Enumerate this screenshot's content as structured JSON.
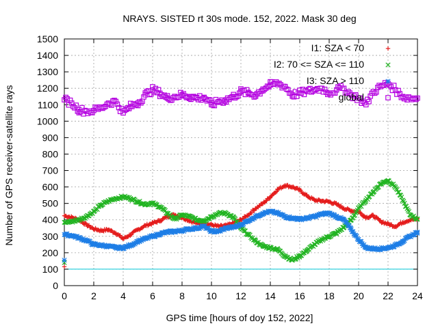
{
  "chart_data": {
    "type": "scatter",
    "title": "NRAYS. SISTED rt 30s mode. 152, 2022. Mask 30 deg",
    "xlabel": "GPS time [hours of doy 152, 2022]",
    "ylabel": "Number of GPS receiver-satellite rays",
    "xlim": [
      0,
      24
    ],
    "ylim": [
      0,
      1500
    ],
    "xticks": [
      0,
      2,
      4,
      6,
      8,
      10,
      12,
      14,
      16,
      18,
      20,
      22,
      24
    ],
    "yticks": [
      0,
      100,
      200,
      300,
      400,
      500,
      600,
      700,
      800,
      900,
      1000,
      1100,
      1200,
      1300,
      1400,
      1500
    ],
    "grid": true,
    "legend_position": "top-right",
    "threshold_line": {
      "y": 100,
      "color": "#00c8d8"
    },
    "series": [
      {
        "name": "I1: SZA < 70",
        "marker": "plus",
        "color": "#e41a1a",
        "x": [
          0,
          0.5,
          1,
          1.5,
          2,
          2.5,
          3,
          3.5,
          4,
          4.5,
          5,
          5.5,
          6,
          6.5,
          7,
          7.5,
          8,
          8.5,
          9,
          9.5,
          10,
          10.5,
          11,
          11.5,
          12,
          12.5,
          13,
          13.5,
          14,
          14.5,
          15,
          15.5,
          16,
          16.5,
          17,
          17.5,
          18,
          18.5,
          19,
          19.5,
          20,
          20.5,
          21,
          21.5,
          22,
          22.5,
          23,
          23.5,
          24
        ],
        "values": [
          425,
          415,
          400,
          370,
          345,
          335,
          340,
          320,
          285,
          310,
          340,
          365,
          380,
          395,
          420,
          430,
          415,
          395,
          380,
          375,
          370,
          360,
          365,
          380,
          400,
          430,
          470,
          500,
          540,
          585,
          610,
          600,
          580,
          545,
          520,
          515,
          510,
          495,
          470,
          455,
          450,
          415,
          425,
          390,
          375,
          360,
          385,
          400,
          405
        ]
      },
      {
        "name": "I2: 70 <= SZA <= 110",
        "marker": "cross",
        "color": "#22b422",
        "x": [
          0,
          0.5,
          1,
          1.5,
          2,
          2.5,
          3,
          3.5,
          4,
          4.5,
          5,
          5.5,
          6,
          6.5,
          7,
          7.5,
          8,
          8.5,
          9,
          9.5,
          10,
          10.5,
          11,
          11.5,
          12,
          12.5,
          13,
          13.5,
          14,
          14.5,
          15,
          15.5,
          16,
          16.5,
          17,
          17.5,
          18,
          18.5,
          19,
          19.5,
          20,
          20.5,
          21,
          21.5,
          22,
          22.5,
          23,
          23.5,
          24
        ],
        "values": [
          385,
          390,
          400,
          420,
          450,
          490,
          515,
          530,
          540,
          530,
          510,
          495,
          500,
          480,
          440,
          405,
          430,
          420,
          400,
          395,
          420,
          440,
          440,
          415,
          350,
          310,
          270,
          240,
          230,
          220,
          180,
          155,
          180,
          215,
          250,
          280,
          300,
          320,
          355,
          400,
          470,
          520,
          570,
          620,
          640,
          600,
          520,
          430,
          405
        ]
      },
      {
        "name": "I3: SZA > 110",
        "marker": "star",
        "color": "#1e7ee6",
        "x": [
          0,
          0.5,
          1,
          1.5,
          2,
          2.5,
          3,
          3.5,
          4,
          4.5,
          5,
          5.5,
          6,
          6.5,
          7,
          7.5,
          8,
          8.5,
          9,
          9.5,
          10,
          10.5,
          11,
          11.5,
          12,
          12.5,
          13,
          13.5,
          14,
          14.5,
          15,
          15.5,
          16,
          16.5,
          17,
          17.5,
          18,
          18.5,
          19,
          19.5,
          20,
          20.5,
          21,
          21.5,
          22,
          22.5,
          23,
          23.5,
          24
        ],
        "values": [
          310,
          305,
          290,
          275,
          250,
          245,
          240,
          230,
          230,
          245,
          270,
          285,
          300,
          315,
          325,
          330,
          335,
          345,
          350,
          360,
          330,
          330,
          350,
          355,
          370,
          395,
          420,
          440,
          450,
          440,
          420,
          410,
          405,
          410,
          420,
          435,
          440,
          420,
          400,
          340,
          280,
          230,
          225,
          225,
          230,
          245,
          270,
          300,
          325
        ]
      },
      {
        "name": "global",
        "marker": "square",
        "color": "#b400e0",
        "x": [
          0,
          0.5,
          1,
          1.5,
          2,
          2.5,
          3,
          3.5,
          4,
          4.5,
          5,
          5.5,
          6,
          6.5,
          7,
          7.5,
          8,
          8.5,
          9,
          9.5,
          10,
          10.5,
          11,
          11.5,
          12,
          12.5,
          13,
          13.5,
          14,
          14.5,
          15,
          15.5,
          16,
          16.5,
          17,
          17.5,
          18,
          18.5,
          19,
          19.5,
          20,
          20.5,
          21,
          21.5,
          22,
          22.5,
          23,
          23.5,
          24
        ],
        "values": [
          1130,
          1110,
          1070,
          1060,
          1065,
          1080,
          1110,
          1120,
          1050,
          1090,
          1110,
          1160,
          1190,
          1170,
          1140,
          1150,
          1160,
          1150,
          1140,
          1145,
          1100,
          1120,
          1130,
          1150,
          1180,
          1170,
          1160,
          1195,
          1220,
          1230,
          1210,
          1160,
          1170,
          1180,
          1190,
          1200,
          1170,
          1190,
          1200,
          1160,
          1140,
          1100,
          1180,
          1210,
          1230,
          1190,
          1150,
          1140,
          1140
        ]
      }
    ],
    "outliers": [
      {
        "series": "I1: SZA < 70",
        "x": 0,
        "y": 115
      },
      {
        "series": "I2: 70 <= SZA <= 110",
        "x": 0,
        "y": 140
      },
      {
        "series": "I3: SZA > 110",
        "x": 0,
        "y": 155
      }
    ]
  }
}
